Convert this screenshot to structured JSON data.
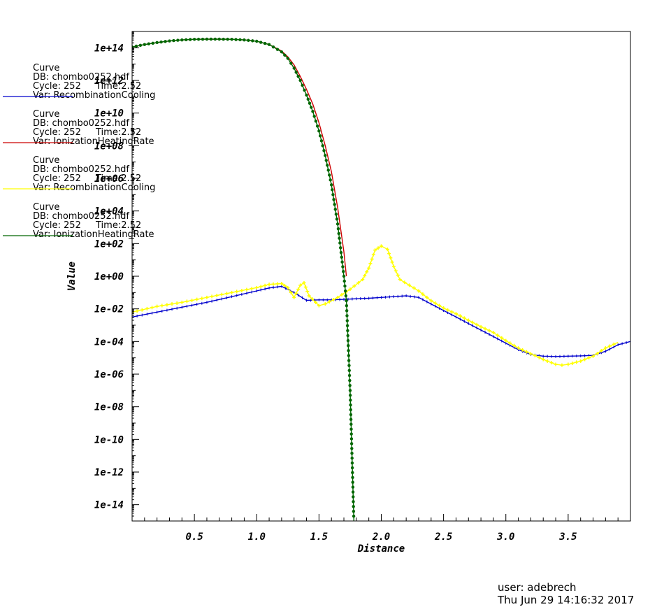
{
  "chart_data": {
    "type": "line",
    "title": "",
    "xlabel": "Distance",
    "ylabel": "Value",
    "xlim": [
      0.0,
      4.0
    ],
    "ylim": [
      1e-15,
      1000000000000000.0
    ],
    "yscale": "log",
    "grid": false,
    "legend_position": "left",
    "x_tick_labels": [
      "0.5",
      "1.0",
      "1.5",
      "2.0",
      "2.5",
      "3.0",
      "3.5"
    ],
    "y_tick_labels": [
      "1e+14",
      "1e+12",
      "1e+10",
      "1e+08",
      "1e+06",
      "1e+04",
      "1e+02",
      "1e+00",
      "1e-02",
      "1e-04",
      "1e-06",
      "1e-08",
      "1e-10",
      "1e-12",
      "1e-14"
    ],
    "series": [
      {
        "legend": [
          "Curve",
          "DB: chombo0252.hdf",
          "Cycle: 252",
          "Time:2.52",
          "Var: RecombinationCooling"
        ],
        "color": "#0000cc",
        "marker": "tick",
        "points": [
          [
            0.0,
            -2.5
          ],
          [
            0.2,
            -2.2
          ],
          [
            0.4,
            -1.9
          ],
          [
            0.6,
            -1.6
          ],
          [
            0.8,
            -1.25
          ],
          [
            1.0,
            -0.9
          ],
          [
            1.1,
            -0.72
          ],
          [
            1.2,
            -0.62
          ],
          [
            1.3,
            -1.0
          ],
          [
            1.4,
            -1.48
          ],
          [
            1.5,
            -1.45
          ],
          [
            1.6,
            -1.45
          ],
          [
            1.7,
            -1.42
          ],
          [
            1.8,
            -1.38
          ],
          [
            1.9,
            -1.35
          ],
          [
            2.0,
            -1.3
          ],
          [
            2.1,
            -1.25
          ],
          [
            2.2,
            -1.2
          ],
          [
            2.3,
            -1.3
          ],
          [
            2.4,
            -1.7
          ],
          [
            2.5,
            -2.1
          ],
          [
            2.6,
            -2.5
          ],
          [
            2.7,
            -2.9
          ],
          [
            2.8,
            -3.3
          ],
          [
            2.9,
            -3.7
          ],
          [
            3.0,
            -4.1
          ],
          [
            3.1,
            -4.5
          ],
          [
            3.2,
            -4.8
          ],
          [
            3.3,
            -4.9
          ],
          [
            3.4,
            -4.92
          ],
          [
            3.5,
            -4.9
          ],
          [
            3.6,
            -4.88
          ],
          [
            3.7,
            -4.85
          ],
          [
            3.8,
            -4.6
          ],
          [
            3.9,
            -4.2
          ],
          [
            4.0,
            -4.0
          ]
        ]
      },
      {
        "legend": [
          "Curve",
          "DB: chombo0252.hdf",
          "Cycle: 252",
          "Time:2.52",
          "Var: IonizationHeatingRate"
        ],
        "color": "#cc0000",
        "marker": "none",
        "points": [
          [
            0.0,
            14.05
          ],
          [
            0.1,
            14.2
          ],
          [
            0.2,
            14.32
          ],
          [
            0.3,
            14.42
          ],
          [
            0.4,
            14.48
          ],
          [
            0.5,
            14.52
          ],
          [
            0.6,
            14.53
          ],
          [
            0.7,
            14.53
          ],
          [
            0.8,
            14.52
          ],
          [
            0.9,
            14.48
          ],
          [
            1.0,
            14.4
          ],
          [
            1.1,
            14.2
          ],
          [
            1.2,
            13.8
          ],
          [
            1.25,
            13.45
          ],
          [
            1.3,
            12.95
          ],
          [
            1.35,
            12.25
          ],
          [
            1.4,
            11.45
          ],
          [
            1.45,
            10.55
          ],
          [
            1.5,
            9.4
          ],
          [
            1.55,
            8.0
          ],
          [
            1.6,
            6.4
          ],
          [
            1.65,
            4.2
          ],
          [
            1.7,
            1.5
          ],
          [
            1.72,
            0.0
          ]
        ]
      },
      {
        "legend": [
          "Curve",
          "DB: chombo0252.hdf",
          "Cycle: 252",
          "Time:2.52",
          "Var: RecombinationCooling"
        ],
        "color": "#ffff00",
        "marker": "cross",
        "points": [
          [
            0.0,
            -2.2
          ],
          [
            0.2,
            -1.85
          ],
          [
            0.4,
            -1.6
          ],
          [
            0.6,
            -1.3
          ],
          [
            0.8,
            -1.0
          ],
          [
            1.0,
            -0.7
          ],
          [
            1.1,
            -0.5
          ],
          [
            1.2,
            -0.45
          ],
          [
            1.25,
            -0.7
          ],
          [
            1.3,
            -1.3
          ],
          [
            1.35,
            -0.55
          ],
          [
            1.38,
            -0.4
          ],
          [
            1.42,
            -1.2
          ],
          [
            1.5,
            -1.8
          ],
          [
            1.55,
            -1.7
          ],
          [
            1.65,
            -1.3
          ],
          [
            1.75,
            -0.8
          ],
          [
            1.85,
            -0.2
          ],
          [
            1.9,
            0.5
          ],
          [
            1.95,
            1.6
          ],
          [
            2.0,
            1.85
          ],
          [
            2.05,
            1.65
          ],
          [
            2.1,
            0.6
          ],
          [
            2.15,
            -0.2
          ],
          [
            2.3,
            -0.9
          ],
          [
            2.4,
            -1.5
          ],
          [
            2.5,
            -1.95
          ],
          [
            2.6,
            -2.3
          ],
          [
            2.7,
            -2.7
          ],
          [
            2.8,
            -3.1
          ],
          [
            2.9,
            -3.45
          ],
          [
            3.0,
            -3.95
          ],
          [
            3.1,
            -4.4
          ],
          [
            3.2,
            -4.75
          ],
          [
            3.3,
            -5.1
          ],
          [
            3.4,
            -5.4
          ],
          [
            3.45,
            -5.45
          ],
          [
            3.5,
            -5.4
          ],
          [
            3.6,
            -5.2
          ],
          [
            3.7,
            -4.9
          ],
          [
            3.8,
            -4.4
          ],
          [
            3.9,
            -4.05
          ]
        ]
      },
      {
        "legend": [
          "Curve",
          "DB: chombo0252.hdf",
          "Cycle: 252",
          "Time:2.52",
          "Var: IonizationHeatingRate"
        ],
        "color": "#006600",
        "marker": "dot",
        "points": [
          [
            0.0,
            14.05
          ],
          [
            0.1,
            14.2
          ],
          [
            0.2,
            14.32
          ],
          [
            0.3,
            14.42
          ],
          [
            0.4,
            14.48
          ],
          [
            0.5,
            14.52
          ],
          [
            0.6,
            14.53
          ],
          [
            0.7,
            14.53
          ],
          [
            0.8,
            14.52
          ],
          [
            0.9,
            14.48
          ],
          [
            1.0,
            14.4
          ],
          [
            1.1,
            14.2
          ],
          [
            1.2,
            13.75
          ],
          [
            1.25,
            13.35
          ],
          [
            1.3,
            12.75
          ],
          [
            1.35,
            12.0
          ],
          [
            1.4,
            11.1
          ],
          [
            1.45,
            10.1
          ],
          [
            1.5,
            8.9
          ],
          [
            1.55,
            7.4
          ],
          [
            1.6,
            5.6
          ],
          [
            1.65,
            3.2
          ],
          [
            1.7,
            0.0
          ],
          [
            1.72,
            -1.5
          ],
          [
            1.75,
            -7.0
          ],
          [
            1.78,
            -15.0
          ]
        ]
      }
    ]
  },
  "footer": {
    "user": "user: adebrech",
    "timestamp": "Thu Jun 29 14:16:32 2017"
  }
}
